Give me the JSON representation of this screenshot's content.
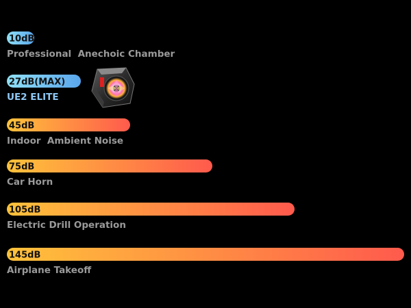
{
  "chart_data": {
    "type": "bar",
    "orientation": "horizontal",
    "title": "",
    "xlabel": "",
    "ylabel": "",
    "xlim": [
      0,
      145
    ],
    "grid": false,
    "legend": "none",
    "categories": [
      "Professional  Anechoic Chamber",
      "UE2 ELITE",
      "Indoor  Ambient Noise",
      "Car Horn",
      "Electric Drill Operation",
      "Airplane Takeoff"
    ],
    "values": [
      10,
      27,
      45,
      75,
      105,
      145
    ],
    "value_labels": [
      "10dB",
      "27dB(MAX)",
      "45dB",
      "75dB",
      "105dB",
      "145dB"
    ],
    "highlight": [
      true,
      true,
      false,
      false,
      false,
      false
    ],
    "product_image": "cpu-cooler-fan",
    "colors": {
      "background": "#000000",
      "blue_start": "#8fe0f7",
      "blue_end": "#5aa6ec",
      "warm_start": "#ffc23a",
      "warm_end": "#ff5a4d",
      "category_text": "#9a9a9a",
      "highlight_text": "#8fc8f5",
      "value_text": "#111111"
    }
  }
}
